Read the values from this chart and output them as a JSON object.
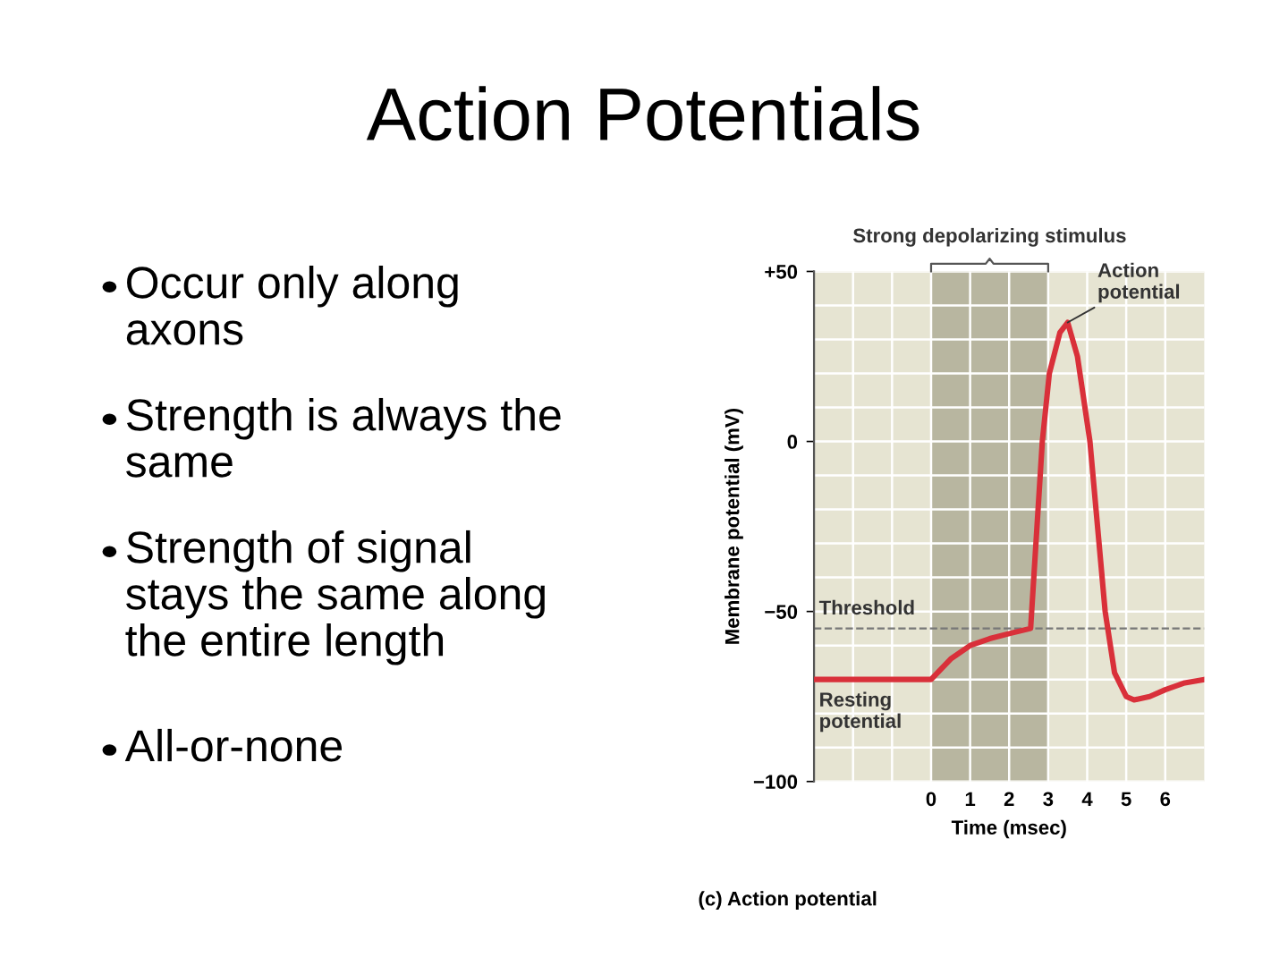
{
  "chart_data": {
    "type": "line",
    "title": "Action Potentials",
    "xlabel": "Time (msec)",
    "ylabel": "Membrane potential (mV)",
    "x": [
      -3,
      0,
      0.5,
      1,
      1.5,
      2,
      2.55,
      2.85,
      3.03,
      3.3,
      3.5,
      3.75,
      4.07,
      4.46,
      4.7,
      5.0,
      5.2,
      5.6,
      6.0,
      6.5,
      7
    ],
    "series": [
      {
        "color": "#d9303a",
        "values": [
          -70,
          -70,
          -64,
          -60,
          -58,
          -56.5,
          -55,
          0,
          20,
          32,
          35,
          25,
          0,
          -50,
          -68,
          -75,
          -76,
          -75,
          -73,
          -71,
          -70
        ]
      }
    ],
    "xlim": [
      -3,
      7
    ],
    "ylim": [
      -100,
      50
    ],
    "xticks": [
      {
        "value": -2,
        "label": null
      },
      {
        "value": -1,
        "label": null
      },
      0,
      1,
      2,
      3,
      4,
      5,
      6
    ],
    "yticks": [
      {
        "value": -100,
        "label": "−100"
      },
      {
        "value": -90,
        "label": null
      },
      {
        "value": -80,
        "label": null
      },
      {
        "value": -70,
        "label": null
      },
      {
        "value": -60,
        "label": null
      },
      {
        "value": -50,
        "label": "−50"
      },
      {
        "value": -40,
        "label": null
      },
      {
        "value": -30,
        "label": null
      },
      {
        "value": -20,
        "label": null
      },
      {
        "value": -10,
        "label": null
      },
      0,
      {
        "value": 10,
        "label": null
      },
      {
        "value": 20,
        "label": null
      },
      {
        "value": 30,
        "label": null
      },
      {
        "value": 40,
        "label": null
      },
      {
        "value": 50,
        "label": "+50"
      }
    ],
    "grid": true,
    "line_style": "solid",
    "marker": "none",
    "ref_lines": [
      {
        "axis": "y",
        "value": -55,
        "label": "Threshold",
        "color": "#777777",
        "line_style": "dashed"
      }
    ],
    "bands": [
      {
        "axis": "x",
        "from": 0,
        "to": 3,
        "label": "Strong depolarizing stimulus",
        "color": "#b8b6a0"
      }
    ],
    "annotations": [
      "Occur only along\naxons",
      "Strength is always the\nsame",
      "Strength of signal\nstays the same along\nthe entire length",
      "All-or-none",
      {
        "text": "Action\npotential",
        "x": 3.5,
        "y": 35
      },
      {
        "text": "Resting\npotential",
        "x": -3,
        "y": -70
      },
      "(c) Action potential"
    ]
  }
}
